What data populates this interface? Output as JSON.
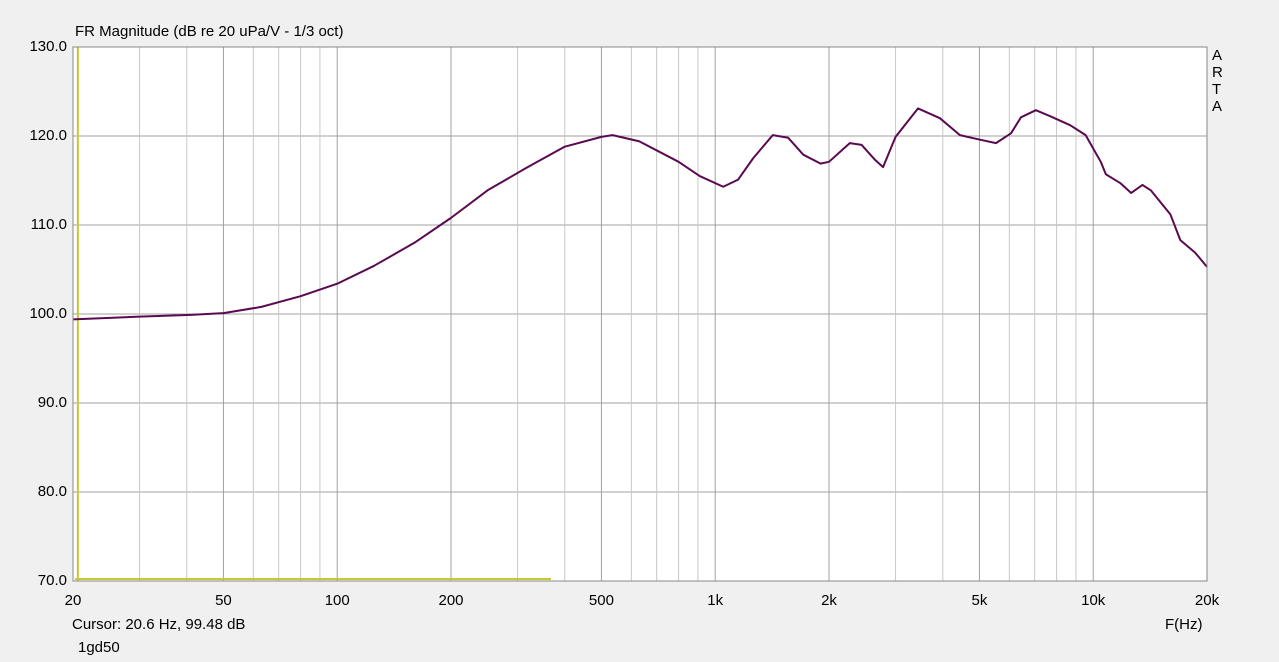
{
  "chart_data": {
    "type": "line",
    "title": "FR Magnitude (dB re 20 uPa/V - 1/3 oct)",
    "x_label": "F(Hz)",
    "watermark": [
      "A",
      "R",
      "T",
      "A"
    ],
    "cursor": {
      "x": 20.6,
      "label": "Cursor: 20.6 Hz, 99.48 dB",
      "color": "#c8c832"
    },
    "measurement": "1gd50",
    "x_scale": "log",
    "grid": true,
    "xlim": [
      20,
      20000
    ],
    "ylim": [
      70,
      130
    ],
    "xticks": [
      20,
      50,
      100,
      200,
      500,
      {
        "value": 1000,
        "label": "1k"
      },
      {
        "value": 2000,
        "label": "2k"
      },
      {
        "value": 5000,
        "label": "5k"
      },
      {
        "value": 10000,
        "label": "10k"
      },
      {
        "value": 20000,
        "label": "20k"
      }
    ],
    "x_minor_grid": [
      30,
      40,
      60,
      70,
      80,
      90,
      300,
      400,
      600,
      700,
      800,
      900,
      3000,
      4000,
      6000,
      7000,
      8000,
      9000
    ],
    "yticks": [
      {
        "value": 70,
        "label": "70.0"
      },
      {
        "value": 80,
        "label": "80.0"
      },
      {
        "value": 90,
        "label": "90.0"
      },
      {
        "value": 100,
        "label": "100.0"
      },
      {
        "value": 110,
        "label": "110.0"
      },
      {
        "value": 120,
        "label": "120.0"
      },
      {
        "value": 130,
        "label": "130.0"
      }
    ],
    "series": [
      {
        "color": "#5a0a50",
        "x": [
          20,
          30,
          41,
          50,
          63,
          80,
          100,
          125,
          160,
          200,
          250,
          316,
          400,
          500,
          535,
          630,
          800,
          910,
          1050,
          1150,
          1260,
          1420,
          1560,
          1710,
          1900,
          2000,
          2270,
          2440,
          2650,
          2780,
          3000,
          3440,
          3930,
          4440,
          5000,
          5530,
          6060,
          6440,
          7050,
          7720,
          8700,
          9550,
          10470,
          10800,
          11800,
          12600,
          13500,
          14200,
          16000,
          17000,
          18600,
          20000
        ],
        "values": [
          99.4,
          99.7,
          99.9,
          100.1,
          100.8,
          102.0,
          103.4,
          105.4,
          108.0,
          110.8,
          113.9,
          116.4,
          118.8,
          119.9,
          120.1,
          119.4,
          117.1,
          115.5,
          114.3,
          115.1,
          117.5,
          120.1,
          119.8,
          117.9,
          116.9,
          117.1,
          119.2,
          119.0,
          117.3,
          116.5,
          119.9,
          123.1,
          122.0,
          120.1,
          119.6,
          119.2,
          120.3,
          122.1,
          122.9,
          122.2,
          121.2,
          120.1,
          117.1,
          115.7,
          114.7,
          113.6,
          114.5,
          113.9,
          111.2,
          108.3,
          106.9,
          105.3
        ]
      }
    ]
  }
}
